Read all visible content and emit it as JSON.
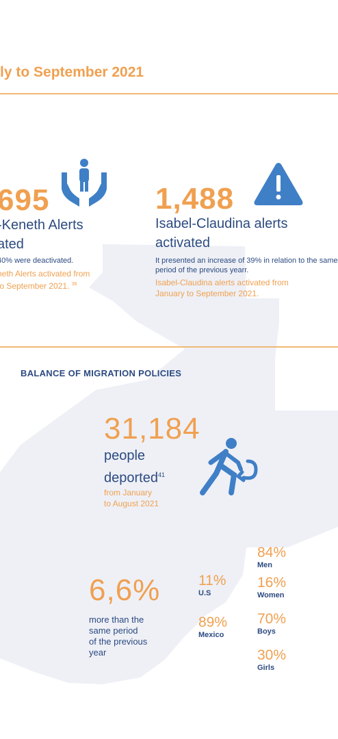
{
  "header": {
    "title": "ly to September 2021"
  },
  "alba_keneth": {
    "count": "695",
    "label_line1": "-Keneth Alerts",
    "label_line2": "ated",
    "note": "40% were deactivated.",
    "orange_line1": "neth Alerts activated from",
    "orange_line2": "to September 2021.",
    "footnote": "36",
    "icon": "hands-holding-child-icon"
  },
  "isabel_claudina": {
    "count": "1,488",
    "label_line1": "Isabel-Claudina alerts",
    "label_line2": "activated",
    "note": "It presented an increase of 39% in relation to the same period of the previous yearr.",
    "orange_note": "Isabel-Claudina alerts activated from January to September 2021.",
    "icon": "warning-triangle-icon"
  },
  "migration": {
    "section_title": "BALANCE OF MIGRATION POLICIES",
    "deported": {
      "count": "31,184",
      "label_line1": "people",
      "label_line2": "deported",
      "footnote": "41",
      "period_line1": "from January",
      "period_line2": "to August 2021",
      "icon": "person-returning-icon"
    },
    "increase": {
      "value": "6,6%",
      "line1": "more than the",
      "line2": "same period",
      "line3": "of the previous",
      "line4": "year"
    },
    "origin": [
      {
        "pct": "11%",
        "label": "U.S"
      },
      {
        "pct": "89%",
        "label": "Mexico"
      }
    ],
    "breakdown": [
      {
        "pct": "84%",
        "label": "Men"
      },
      {
        "pct": "16%",
        "label": "Women"
      },
      {
        "pct": "70%",
        "label": "Boys"
      },
      {
        "pct": "30%",
        "label": "Girls"
      }
    ]
  },
  "colors": {
    "orange": "#f0a050",
    "navy": "#2c4a80",
    "blue": "#3f7fc6",
    "map": "#eef0f6"
  }
}
